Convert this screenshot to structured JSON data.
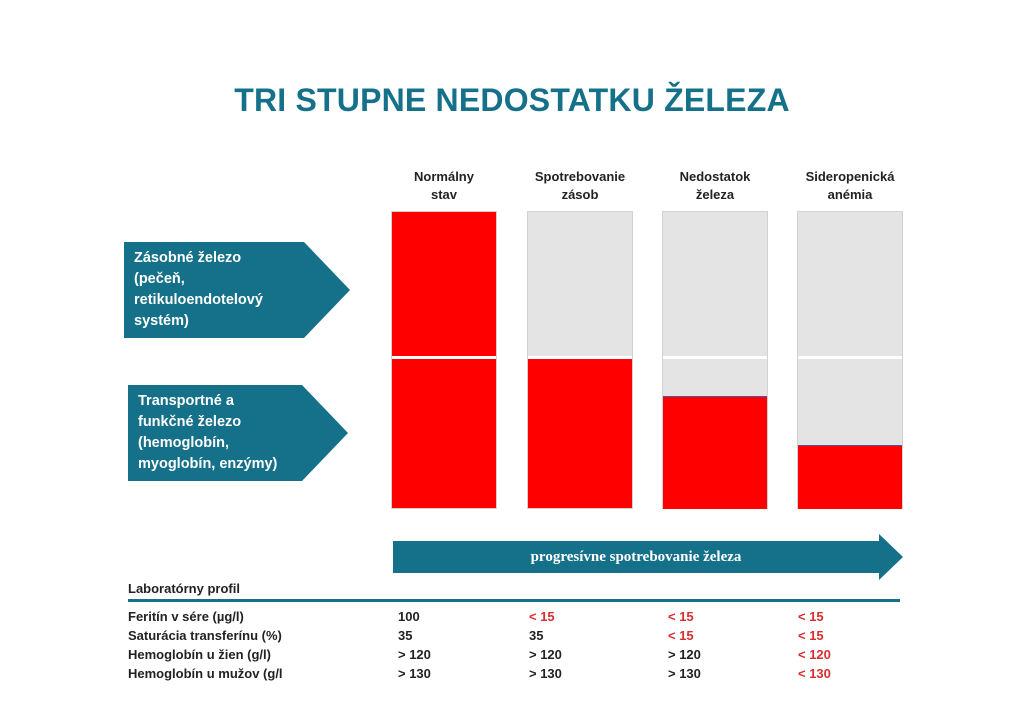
{
  "title": "TRI STUPNE NEDOSTATKU ŽELEZA",
  "columns": [
    {
      "line1": "Normálny",
      "line2": "stav",
      "store_level": 1.0,
      "transport_level": 1.0
    },
    {
      "line1": "Spotrebovanie",
      "line2": "zásob",
      "store_level": 0.0,
      "transport_level": 1.0
    },
    {
      "line1": "Nedostatok",
      "line2": "železa",
      "store_level": 0.0,
      "transport_level": 0.75
    },
    {
      "line1": "Sideropenická",
      "line2": "anémia",
      "store_level": 0.0,
      "transport_level": 0.42
    }
  ],
  "labels": {
    "store": [
      "Zásobné železo",
      "(pečeň,",
      "retikuloendotelový",
      "systém)"
    ],
    "transport": [
      "Transportné a",
      "funkčné železo",
      "(hemoglobín,",
      "myoglobín, enzýmy)"
    ]
  },
  "progress_label": "progresívne spotrebovanie železa",
  "lab": {
    "title": "Laboratórny profil",
    "rows": [
      {
        "name": "Feritín v sére (µg/l)",
        "values": [
          "100",
          "< 15",
          "< 15",
          "< 15"
        ],
        "abnormal": [
          false,
          true,
          true,
          true
        ]
      },
      {
        "name": "Saturácia transferínu (%)",
        "values": [
          "35",
          "35",
          "< 15",
          "< 15"
        ],
        "abnormal": [
          false,
          false,
          true,
          true
        ]
      },
      {
        "name": "Hemoglobín u žien (g/l)",
        "values": [
          "> 120",
          "> 120",
          "> 120",
          "< 120"
        ],
        "abnormal": [
          false,
          false,
          false,
          true
        ]
      },
      {
        "name": "Hemoglobín u mužov (g/l",
        "values": [
          "> 130",
          "> 130",
          "> 130",
          "< 130"
        ],
        "abnormal": [
          false,
          false,
          false,
          true
        ]
      }
    ]
  },
  "colors": {
    "accent": "#15708a",
    "fill": "#ff0000",
    "empty": "#e4e4e4",
    "abnormal_text": "#d62e2e"
  }
}
